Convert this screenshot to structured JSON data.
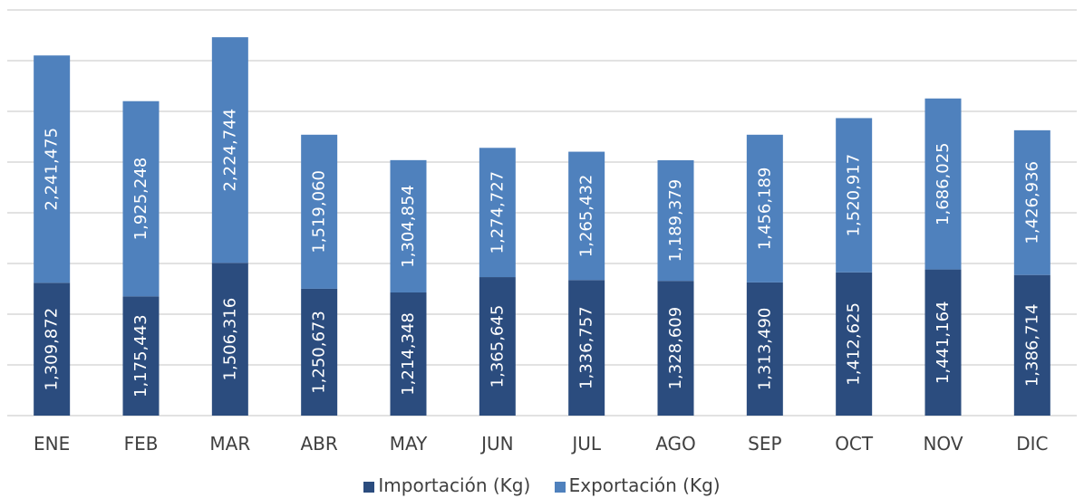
{
  "chart_data": {
    "type": "bar",
    "stacked": true,
    "categories": [
      "ENE",
      "FEB",
      "MAR",
      "ABR",
      "MAY",
      "JUN",
      "JUL",
      "AGO",
      "SEP",
      "OCT",
      "NOV",
      "DIC"
    ],
    "series": [
      {
        "name": "Importación (Kg)",
        "color": "#2b4c7e",
        "values": [
          1309872,
          1175443,
          1506316,
          1250673,
          1214348,
          1365645,
          1336757,
          1328609,
          1313490,
          1412625,
          1441164,
          1386714
        ],
        "labels": [
          "1,309,872",
          "1,175,443",
          "1,506,316",
          "1,250,673",
          "1,214,348",
          "1,365,645",
          "1,336,757",
          "1,328,609",
          "1,313,490",
          "1,412,625",
          "1,441,164",
          "1,386,714"
        ]
      },
      {
        "name": "Exportación (Kg)",
        "color": "#4f81bd",
        "values": [
          2241475,
          1925248,
          2224744,
          1519060,
          1304854,
          1274727,
          1265432,
          1189379,
          1456189,
          1520917,
          1686025,
          1426936
        ],
        "labels": [
          "2,241,475",
          "1,925,248",
          "2,224,744",
          "1,519,060",
          "1,304,854",
          "1,274,727",
          "1,265,432",
          "1,189,379",
          "1,456,189",
          "1,520,917",
          "1,686,025",
          "1,426,936"
        ]
      }
    ],
    "ylim": [
      0,
      4000000
    ],
    "grid": true,
    "legend_position": "bottom",
    "title": "",
    "xlabel": "",
    "ylabel": ""
  }
}
